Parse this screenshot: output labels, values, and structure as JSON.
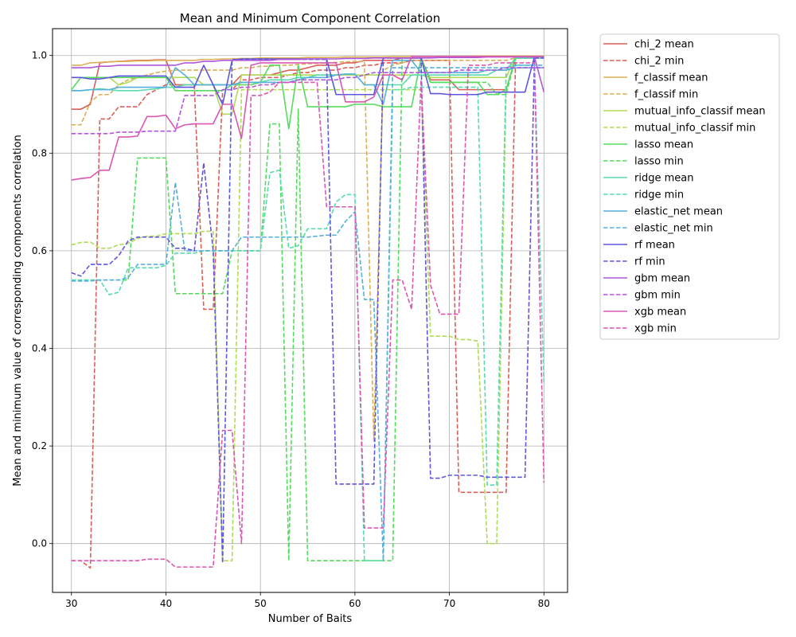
{
  "chart_data": {
    "type": "line",
    "title": "Mean and Minimum Component Correlation",
    "xlabel": "Number of Baits",
    "ylabel": "Mean and minimum value of corresponding components correlation",
    "xlim": [
      28,
      82.5
    ],
    "ylim": [
      -0.1,
      1.055
    ],
    "xticks": [
      30,
      40,
      50,
      60,
      70,
      80
    ],
    "yticks": [
      0.0,
      0.2,
      0.4,
      0.6,
      0.8,
      1.0
    ],
    "xtick_labels": [
      "30",
      "40",
      "50",
      "60",
      "70",
      "80"
    ],
    "ytick_labels": [
      "0.0",
      "0.2",
      "0.4",
      "0.6",
      "0.8",
      "1.0"
    ],
    "grid": true,
    "legend_position": "outside-right",
    "x": [
      30,
      31,
      32,
      33,
      34,
      35,
      36,
      37,
      38,
      39,
      40,
      41,
      42,
      43,
      44,
      45,
      46,
      47,
      48,
      49,
      50,
      51,
      52,
      53,
      54,
      55,
      56,
      57,
      58,
      59,
      60,
      61,
      62,
      63,
      64,
      65,
      66,
      67,
      68,
      69,
      70,
      71,
      72,
      73,
      74,
      75,
      76,
      77,
      78,
      79,
      80
    ],
    "series": [
      {
        "name": "chi_2 mean",
        "color": "#db5f57",
        "dash": "solid",
        "values": [
          0.89,
          0.89,
          0.9,
          0.985,
          0.987,
          0.988,
          0.989,
          0.99,
          0.99,
          0.991,
          0.991,
          0.94,
          0.94,
          0.94,
          0.94,
          0.94,
          0.94,
          0.94,
          0.96,
          0.96,
          0.96,
          0.96,
          0.965,
          0.97,
          0.97,
          0.975,
          0.98,
          0.98,
          0.98,
          0.985,
          0.985,
          0.99,
          0.99,
          0.99,
          0.99,
          0.995,
          0.995,
          0.995,
          0.95,
          0.95,
          0.95,
          0.93,
          0.93,
          0.93,
          0.93,
          0.93,
          0.93,
          0.995,
          0.995,
          0.995,
          0.995
        ]
      },
      {
        "name": "chi_2 min",
        "color": "#db5f57",
        "dash": "dashed",
        "values": [
          -0.035,
          -0.035,
          -0.05,
          0.87,
          0.87,
          0.895,
          0.895,
          0.895,
          0.92,
          0.93,
          0.94,
          0.94,
          0.94,
          0.94,
          0.48,
          0.48,
          0.93,
          0.93,
          0.95,
          0.95,
          0.955,
          0.955,
          0.955,
          0.96,
          0.965,
          0.965,
          0.97,
          0.97,
          0.97,
          0.975,
          0.975,
          0.98,
          0.98,
          0.985,
          0.985,
          0.985,
          0.99,
          0.99,
          0.99,
          0.99,
          0.99,
          0.105,
          0.105,
          0.105,
          0.105,
          0.105,
          0.105,
          0.995,
          0.995,
          0.995,
          0.995
        ]
      },
      {
        "name": "f_classif mean",
        "color": "#dbaf57",
        "dash": "solid",
        "values": [
          0.98,
          0.98,
          0.985,
          0.986,
          0.987,
          0.988,
          0.988,
          0.989,
          0.989,
          0.99,
          0.99,
          0.99,
          0.99,
          0.99,
          0.992,
          0.992,
          0.993,
          0.993,
          0.994,
          0.994,
          0.995,
          0.995,
          0.995,
          0.995,
          0.995,
          0.996,
          0.996,
          0.996,
          0.996,
          0.997,
          0.997,
          0.997,
          0.997,
          0.997,
          0.998,
          0.998,
          0.998,
          0.998,
          0.998,
          0.998,
          0.998,
          0.998,
          0.998,
          0.999,
          0.999,
          0.999,
          0.999,
          0.999,
          0.999,
          0.999,
          0.999
        ]
      },
      {
        "name": "f_classif min",
        "color": "#dbaf57",
        "dash": "dashed",
        "values": [
          0.858,
          0.858,
          0.905,
          0.92,
          0.92,
          0.94,
          0.95,
          0.955,
          0.96,
          0.965,
          0.968,
          0.97,
          0.97,
          0.97,
          0.97,
          0.97,
          0.97,
          0.97,
          0.975,
          0.975,
          0.978,
          0.978,
          0.98,
          0.98,
          0.982,
          0.983,
          0.984,
          0.985,
          0.986,
          0.987,
          0.988,
          0.988,
          0.21,
          0.97,
          0.98,
          0.985,
          0.99,
          0.99,
          0.99,
          0.99,
          0.99,
          0.99,
          0.99,
          0.99,
          0.99,
          0.99,
          0.99,
          0.995,
          0.995,
          0.995,
          0.995
        ]
      },
      {
        "name": "mutual_info_classif mean",
        "color": "#afdb57",
        "dash": "solid",
        "values": [
          0.955,
          0.955,
          0.955,
          0.955,
          0.955,
          0.94,
          0.945,
          0.955,
          0.955,
          0.955,
          0.955,
          0.955,
          0.955,
          0.955,
          0.94,
          0.94,
          0.88,
          0.88,
          0.96,
          0.96,
          0.96,
          0.96,
          0.96,
          0.96,
          0.96,
          0.96,
          0.96,
          0.96,
          0.96,
          0.96,
          0.96,
          0.96,
          0.96,
          0.96,
          0.96,
          0.96,
          0.96,
          0.96,
          0.955,
          0.955,
          0.955,
          0.955,
          0.955,
          0.955,
          0.955,
          0.955,
          0.955,
          0.998,
          0.998,
          0.998,
          0.998
        ]
      },
      {
        "name": "mutual_info_classif min",
        "color": "#afdb57",
        "dash": "dashed",
        "values": [
          0.612,
          0.617,
          0.618,
          0.605,
          0.605,
          0.612,
          0.615,
          0.625,
          0.63,
          0.63,
          0.635,
          0.635,
          0.635,
          0.635,
          0.64,
          0.64,
          -0.035,
          -0.035,
          0.93,
          0.93,
          0.93,
          0.93,
          0.93,
          0.93,
          0.93,
          0.93,
          0.93,
          0.93,
          0.93,
          0.93,
          0.93,
          0.93,
          0.93,
          0.93,
          0.93,
          0.93,
          0.93,
          0.93,
          0.425,
          0.425,
          0.425,
          0.418,
          0.418,
          0.415,
          0.0,
          0.0,
          0.93,
          0.995,
          0.995,
          0.995,
          0.995
        ]
      },
      {
        "name": "lasso mean",
        "color": "#57db5f",
        "dash": "solid",
        "values": [
          0.93,
          0.955,
          0.955,
          0.955,
          0.955,
          0.955,
          0.955,
          0.955,
          0.955,
          0.955,
          0.955,
          0.928,
          0.928,
          0.928,
          0.928,
          0.928,
          0.928,
          0.94,
          0.94,
          0.94,
          0.945,
          0.98,
          0.98,
          0.85,
          0.98,
          0.895,
          0.895,
          0.895,
          0.895,
          0.895,
          0.9,
          0.9,
          0.9,
          0.895,
          0.895,
          0.895,
          0.895,
          0.995,
          0.945,
          0.945,
          0.945,
          0.945,
          0.945,
          0.945,
          0.92,
          0.92,
          0.93,
          0.995,
          0.995,
          0.995,
          0.995
        ]
      },
      {
        "name": "lasso min",
        "color": "#57db5f",
        "dash": "dashed",
        "values": [
          0.54,
          0.54,
          0.54,
          0.54,
          0.54,
          0.54,
          0.54,
          0.79,
          0.79,
          0.79,
          0.79,
          0.512,
          0.512,
          0.512,
          0.512,
          0.512,
          0.512,
          0.6,
          0.6,
          0.6,
          0.6,
          0.86,
          0.86,
          -0.035,
          0.89,
          -0.035,
          -0.035,
          -0.035,
          -0.035,
          -0.035,
          -0.035,
          -0.035,
          -0.035,
          -0.035,
          -0.035,
          0.995,
          0.995,
          0.995,
          0.945,
          0.945,
          0.945,
          0.945,
          0.945,
          0.945,
          0.945,
          0.92,
          0.92,
          0.995,
          0.995,
          0.995,
          0.995
        ]
      },
      {
        "name": "ridge mean",
        "color": "#57dbaf",
        "dash": "solid",
        "values": [
          0.928,
          0.928,
          0.93,
          0.932,
          0.93,
          0.928,
          0.928,
          0.928,
          0.93,
          0.932,
          0.935,
          0.935,
          0.94,
          0.94,
          0.94,
          0.94,
          0.94,
          0.94,
          0.945,
          0.945,
          0.945,
          0.95,
          0.95,
          0.95,
          0.955,
          0.955,
          0.96,
          0.96,
          0.96,
          0.962,
          0.962,
          0.94,
          0.94,
          0.94,
          0.94,
          0.94,
          0.96,
          0.96,
          0.96,
          0.96,
          0.96,
          0.96,
          0.96,
          0.96,
          0.96,
          0.97,
          0.97,
          0.995,
          0.995,
          0.995,
          0.995
        ]
      },
      {
        "name": "ridge min",
        "color": "#57dbaf",
        "dash": "dashed",
        "values": [
          0.54,
          0.54,
          0.54,
          0.54,
          0.51,
          0.515,
          0.565,
          0.565,
          0.565,
          0.565,
          0.57,
          0.595,
          0.595,
          0.595,
          0.6,
          0.6,
          0.6,
          0.6,
          0.6,
          0.6,
          0.6,
          0.76,
          0.765,
          0.605,
          0.61,
          0.645,
          0.645,
          0.645,
          0.7,
          0.715,
          0.715,
          -0.035,
          -0.035,
          -0.035,
          0.93,
          0.93,
          0.935,
          0.935,
          0.935,
          0.935,
          0.935,
          0.935,
          0.935,
          0.935,
          0.12,
          0.12,
          0.97,
          0.98,
          0.98,
          0.98,
          0.33
        ]
      },
      {
        "name": "elastic_net mean",
        "color": "#57afdb",
        "dash": "solid",
        "values": [
          0.928,
          0.928,
          0.93,
          0.93,
          0.93,
          0.935,
          0.935,
          0.935,
          0.935,
          0.935,
          0.935,
          0.975,
          0.96,
          0.94,
          0.94,
          0.94,
          0.94,
          0.94,
          0.945,
          0.945,
          0.945,
          0.945,
          0.945,
          0.945,
          0.95,
          0.955,
          0.955,
          0.955,
          0.96,
          0.962,
          0.962,
          0.94,
          0.94,
          0.9,
          0.99,
          0.99,
          0.99,
          0.965,
          0.965,
          0.965,
          0.965,
          0.965,
          0.965,
          0.965,
          0.97,
          0.97,
          0.97,
          0.975,
          0.975,
          0.975,
          0.975
        ]
      },
      {
        "name": "elastic_net min",
        "color": "#57afdb",
        "dash": "dashed",
        "values": [
          0.538,
          0.538,
          0.538,
          0.54,
          0.54,
          0.54,
          0.545,
          0.572,
          0.572,
          0.572,
          0.572,
          0.74,
          0.6,
          0.6,
          0.6,
          0.6,
          0.6,
          0.6,
          0.628,
          0.628,
          0.628,
          0.628,
          0.628,
          0.628,
          0.628,
          0.628,
          0.63,
          0.632,
          0.632,
          0.66,
          0.68,
          0.5,
          0.5,
          -0.035,
          0.975,
          0.975,
          0.975,
          0.975,
          0.975,
          0.975,
          0.975,
          0.975,
          0.975,
          0.975,
          0.975,
          0.975,
          0.975,
          0.98,
          0.98,
          0.98,
          0.98
        ]
      },
      {
        "name": "rf mean",
        "color": "#5f57db",
        "dash": "solid",
        "values": [
          0.955,
          0.955,
          0.952,
          0.952,
          0.955,
          0.958,
          0.958,
          0.958,
          0.958,
          0.958,
          0.958,
          0.935,
          0.935,
          0.935,
          0.98,
          0.94,
          0.9,
          0.99,
          0.993,
          0.993,
          0.993,
          0.993,
          0.993,
          0.993,
          0.993,
          0.993,
          0.993,
          0.993,
          0.92,
          0.92,
          0.92,
          0.92,
          0.92,
          0.995,
          0.995,
          0.995,
          0.995,
          0.995,
          0.922,
          0.922,
          0.92,
          0.92,
          0.92,
          0.92,
          0.925,
          0.925,
          0.925,
          0.925,
          0.925,
          0.998,
          0.998
        ]
      },
      {
        "name": "rf min",
        "color": "#5f57db",
        "dash": "dashed",
        "values": [
          0.555,
          0.548,
          0.572,
          0.572,
          0.572,
          0.59,
          0.62,
          0.628,
          0.628,
          0.628,
          0.628,
          0.605,
          0.605,
          0.6,
          0.78,
          0.6,
          -0.04,
          0.992,
          0.992,
          0.992,
          0.992,
          0.992,
          0.992,
          0.992,
          0.992,
          0.992,
          0.992,
          0.992,
          0.122,
          0.122,
          0.122,
          0.122,
          0.122,
          0.995,
          0.995,
          0.995,
          0.995,
          0.995,
          0.134,
          0.134,
          0.14,
          0.14,
          0.14,
          0.14,
          0.136,
          0.136,
          0.136,
          0.136,
          0.136,
          0.995,
          0.995
        ]
      },
      {
        "name": "gbm mean",
        "color": "#af57db",
        "dash": "solid",
        "values": [
          0.975,
          0.975,
          0.975,
          0.978,
          0.978,
          0.98,
          0.98,
          0.98,
          0.98,
          0.98,
          0.98,
          0.98,
          0.985,
          0.985,
          0.988,
          0.988,
          0.99,
          0.99,
          0.99,
          0.99,
          0.99,
          0.99,
          0.992,
          0.992,
          0.992,
          0.993,
          0.993,
          0.993,
          0.993,
          0.994,
          0.994,
          0.994,
          0.995,
          0.995,
          0.995,
          0.995,
          0.995,
          0.995,
          0.995,
          0.996,
          0.996,
          0.996,
          0.996,
          0.996,
          0.997,
          0.997,
          0.997,
          0.997,
          0.997,
          0.997,
          0.925
        ]
      },
      {
        "name": "gbm min",
        "color": "#af57db",
        "dash": "dashed",
        "values": [
          0.84,
          0.84,
          0.84,
          0.84,
          0.84,
          0.843,
          0.843,
          0.843,
          0.845,
          0.845,
          0.845,
          0.845,
          0.918,
          0.918,
          0.918,
          0.918,
          0.93,
          0.93,
          0.935,
          0.935,
          0.94,
          0.94,
          0.945,
          0.945,
          0.95,
          0.95,
          0.95,
          0.95,
          0.95,
          0.955,
          0.955,
          0.96,
          0.965,
          0.965,
          0.965,
          0.965,
          0.965,
          0.965,
          0.965,
          0.965,
          0.965,
          0.97,
          0.97,
          0.97,
          0.97,
          0.97,
          0.975,
          0.975,
          0.975,
          0.975,
          0.975
        ]
      },
      {
        "name": "xgb mean",
        "color": "#db57b2",
        "dash": "solid",
        "values": [
          0.745,
          0.748,
          0.75,
          0.765,
          0.765,
          0.833,
          0.833,
          0.835,
          0.875,
          0.875,
          0.878,
          0.85,
          0.858,
          0.86,
          0.86,
          0.86,
          0.9,
          0.9,
          0.83,
          0.98,
          0.985,
          0.985,
          0.985,
          0.985,
          0.985,
          0.985,
          0.985,
          0.985,
          0.985,
          0.905,
          0.905,
          0.905,
          0.915,
          0.96,
          0.96,
          0.95,
          0.998,
          0.998,
          0.998,
          0.998,
          0.998,
          0.998,
          0.998,
          0.998,
          0.998,
          0.998,
          0.998,
          0.998,
          0.998,
          0.998,
          0.998
        ]
      },
      {
        "name": "xgb min",
        "color": "#db57b2",
        "dash": "dashed",
        "values": [
          -0.035,
          -0.035,
          -0.035,
          -0.035,
          -0.035,
          -0.035,
          -0.035,
          -0.035,
          -0.032,
          -0.032,
          -0.032,
          -0.048,
          -0.048,
          -0.048,
          -0.048,
          -0.048,
          0.232,
          0.232,
          0.0,
          0.918,
          0.918,
          0.925,
          0.945,
          0.945,
          0.945,
          0.945,
          0.945,
          0.69,
          0.69,
          0.69,
          0.69,
          0.032,
          0.032,
          0.032,
          0.54,
          0.54,
          0.48,
          0.95,
          0.53,
          0.47,
          0.47,
          0.47,
          0.98,
          0.98,
          0.98,
          0.985,
          0.985,
          0.985,
          0.985,
          0.985,
          0.125
        ]
      }
    ]
  }
}
